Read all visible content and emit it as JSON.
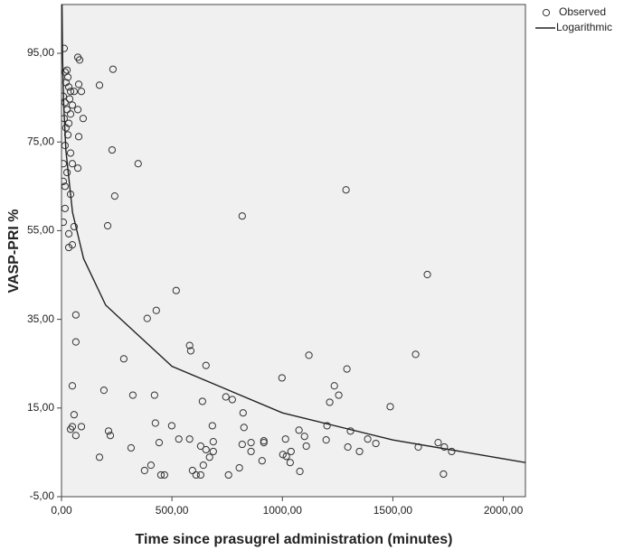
{
  "chart_data": {
    "type": "scatter",
    "xlabel": "Time since prasugrel administration (minutes)",
    "ylabel": "VASP-PRI %",
    "xlim": [
      0,
      2100
    ],
    "ylim": [
      -5,
      106
    ],
    "xticks": [
      {
        "value": 0,
        "label": "0,00"
      },
      {
        "value": 500,
        "label": "500,00"
      },
      {
        "value": 1000,
        "label": "1000,00"
      },
      {
        "value": 1500,
        "label": "1500,00"
      },
      {
        "value": 2000,
        "label": "2000,00"
      }
    ],
    "yticks": [
      {
        "value": -5,
        "label": "-5,00"
      },
      {
        "value": 15,
        "label": "15,00"
      },
      {
        "value": 35,
        "label": "35,00"
      },
      {
        "value": 55,
        "label": "55,00"
      },
      {
        "value": 75,
        "label": "75,00"
      },
      {
        "value": 95,
        "label": "95,00"
      }
    ],
    "legend": "top-right",
    "series": [
      {
        "name": "Observed",
        "type": "scatter",
        "color": "#333333",
        "x": [
          12,
          16,
          25,
          29,
          20,
          33,
          41,
          8,
          16,
          37,
          49,
          25,
          41,
          12,
          33,
          20,
          29,
          16,
          41,
          8,
          49,
          74,
          25,
          8,
          16,
          41,
          16,
          8,
          57,
          33,
          49,
          33,
          65,
          65,
          49,
          57,
          49,
          41,
          65,
          90,
          74,
          82,
          78,
          90,
          98,
          78,
          57,
          74,
          172,
          233,
          229,
          347,
          241,
          209,
          213,
          221,
          192,
          172,
          315,
          323,
          282,
          388,
          429,
          425,
          421,
          519,
          580,
          585,
          654,
          638,
          531,
          442,
          405,
          376,
          450,
          466,
          499,
          580,
          593,
          609,
          630,
          642,
          630,
          654,
          670,
          683,
          687,
          687,
          744,
          773,
          756,
          805,
          822,
          818,
          826,
          858,
          818,
          858,
          916,
          908,
          916,
          998,
          1002,
          1018,
          1014,
          1039,
          1035,
          1075,
          1100,
          1120,
          1108,
          1079,
          1202,
          1198,
          1288,
          1296,
          1214,
          1235,
          1255,
          1308,
          1292,
          1349,
          1386,
          1423,
          1488,
          1603,
          1615,
          1656,
          1705,
          1733,
          1766,
          1729
        ],
        "values": [
          96.1,
          90.8,
          91.2,
          89.6,
          88.4,
          87.4,
          86.4,
          85.3,
          83.9,
          84.7,
          83.3,
          82.3,
          81.3,
          80.3,
          79.2,
          78.2,
          76.6,
          74.2,
          72.5,
          70.1,
          70.1,
          69.1,
          68.1,
          66.1,
          65.0,
          63.2,
          60.0,
          56.9,
          55.9,
          54.3,
          51.8,
          51.2,
          36.0,
          29.9,
          20.0,
          13.5,
          10.8,
          10.2,
          8.8,
          10.8,
          94.1,
          93.5,
          88.0,
          86.4,
          80.3,
          76.2,
          86.4,
          82.3,
          87.8,
          91.4,
          73.2,
          70.1,
          62.8,
          56.1,
          9.8,
          8.8,
          19.0,
          3.9,
          6.0,
          17.9,
          26.1,
          35.2,
          37.0,
          11.6,
          17.9,
          41.5,
          29.1,
          27.9,
          24.6,
          16.5,
          8.0,
          7.2,
          2.1,
          0.9,
          -0.1,
          -0.1,
          11.0,
          8.0,
          0.9,
          -0.1,
          -0.1,
          2.1,
          6.4,
          5.6,
          3.9,
          11.0,
          7.4,
          5.2,
          17.5,
          16.9,
          -0.1,
          1.5,
          13.9,
          6.8,
          10.6,
          7.2,
          58.3,
          5.2,
          7.2,
          3.1,
          7.6,
          21.8,
          4.5,
          4.1,
          8.0,
          5.2,
          2.7,
          10.0,
          8.6,
          26.9,
          6.4,
          0.7,
          11.0,
          7.8,
          64.2,
          6.2,
          16.3,
          20.0,
          17.9,
          9.8,
          23.8,
          5.2,
          8.0,
          7.0,
          15.3,
          27.1,
          6.2,
          45.1,
          7.2,
          6.2,
          5.2,
          0.1
        ]
      },
      {
        "name": "Logarithmic",
        "type": "line",
        "color": "#222222",
        "x": [
          2,
          5,
          10,
          20,
          50,
          100,
          200,
          500,
          1000,
          1500,
          2100
        ],
        "values": [
          107.7,
          93.9,
          83.4,
          73.0,
          59.1,
          48.7,
          38.2,
          24.4,
          13.9,
          7.8,
          2.7
        ]
      }
    ]
  }
}
